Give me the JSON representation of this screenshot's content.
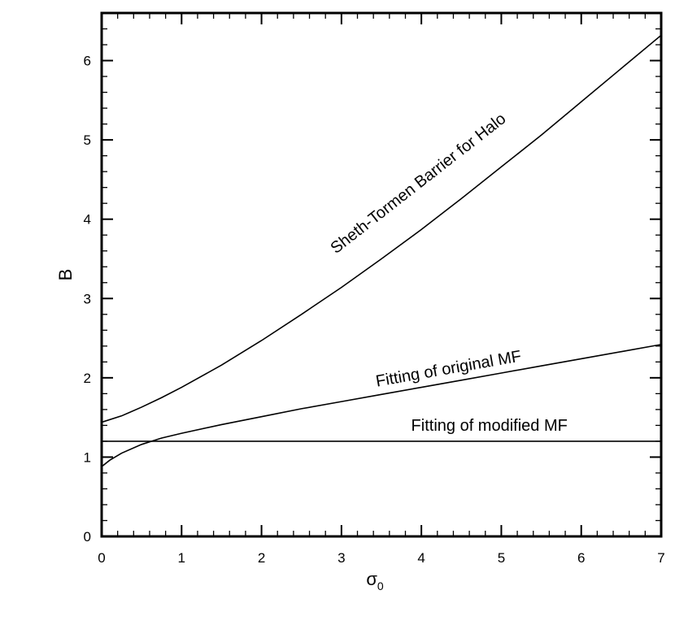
{
  "chart_data": {
    "type": "line",
    "xlabel": "σ",
    "xlabel_sub": "0",
    "ylabel": "B",
    "xlim": [
      0,
      7
    ],
    "ylim": [
      0,
      6.6
    ],
    "x_ticks": [
      0,
      1,
      2,
      3,
      4,
      5,
      6,
      7
    ],
    "y_ticks": [
      0,
      1,
      2,
      3,
      4,
      5,
      6
    ],
    "grid": false,
    "series": [
      {
        "name": "Sheth-Tormen Barrier for Halo",
        "x": [
          0,
          0.25,
          0.5,
          0.75,
          1,
          1.5,
          2,
          2.5,
          3,
          3.5,
          4,
          4.5,
          5,
          5.5,
          6,
          6.5,
          7
        ],
        "values": [
          1.44,
          1.52,
          1.63,
          1.75,
          1.88,
          2.16,
          2.47,
          2.8,
          3.14,
          3.5,
          3.87,
          4.26,
          4.66,
          5.06,
          5.48,
          5.9,
          6.32
        ]
      },
      {
        "name": "Fitting of original MF",
        "x": [
          0,
          0.1,
          0.25,
          0.5,
          0.75,
          1,
          1.5,
          2,
          2.5,
          3,
          3.5,
          4,
          4.5,
          5,
          5.5,
          6,
          6.5,
          7
        ],
        "values": [
          0.88,
          0.96,
          1.05,
          1.16,
          1.24,
          1.3,
          1.41,
          1.51,
          1.61,
          1.7,
          1.79,
          1.88,
          1.97,
          2.06,
          2.15,
          2.24,
          2.33,
          2.42
        ]
      },
      {
        "name": "Fitting of modified MF",
        "x": [
          0,
          7
        ],
        "values": [
          1.2,
          1.2
        ]
      }
    ],
    "annotations": [
      {
        "text": "Sheth-Tormen Barrier for Halo",
        "x": 4.0,
        "y": 4.4,
        "angle": -38
      },
      {
        "text": "Fitting of original MF",
        "x": 4.35,
        "y": 2.05,
        "angle": -10
      },
      {
        "text": "Fitting of modified MF",
        "x": 4.85,
        "y": 1.33,
        "angle": 0
      }
    ]
  }
}
